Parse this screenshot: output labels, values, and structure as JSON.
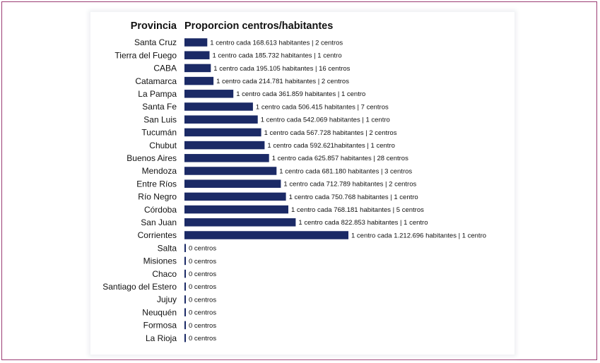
{
  "chart_data": {
    "type": "bar",
    "orientation": "horizontal",
    "header_category": "Provincia",
    "header_value": "Proporcion centros/habitantes",
    "color": "#1b2a66",
    "rows": [
      {
        "category": "Santa Cruz",
        "value": 168613,
        "label": "1 centro cada 168.613 habitantes | 2 centros"
      },
      {
        "category": "Tierra del Fuego",
        "value": 185732,
        "label": "1 centro cada 185.732 habitantes | 1 centro"
      },
      {
        "category": "CABA",
        "value": 195105,
        "label": "1 centro cada 195.105 habitantes | 16 centros"
      },
      {
        "category": "Catamarca",
        "value": 214781,
        "label": "1 centro cada 214.781 habitantes | 2 centros"
      },
      {
        "category": "La Pampa",
        "value": 361859,
        "label": "1 centro cada 361.859 habitantes | 1 centro"
      },
      {
        "category": "Santa Fe",
        "value": 506415,
        "label": "1 centro cada 506.415 habitantes | 7 centros"
      },
      {
        "category": "San Luis",
        "value": 542069,
        "label": "1 centro cada 542.069 habitantes | 1 centro"
      },
      {
        "category": "Tucumán",
        "value": 567728,
        "label": "1 centro cada 567.728 habitantes | 2 centros"
      },
      {
        "category": "Chubut",
        "value": 592621,
        "label": "1 centro cada 592.621habitantes | 1 centro"
      },
      {
        "category": "Buenos Aires",
        "value": 625857,
        "label": "1 centro cada 625.857 habitantes | 28 centros"
      },
      {
        "category": "Mendoza",
        "value": 681180,
        "label": "1 centro cada 681.180 habitantes | 3 centros"
      },
      {
        "category": "Entre Ríos",
        "value": 712789,
        "label": "1 centro cada 712.789 habitantes | 2 centros"
      },
      {
        "category": "Río Negro",
        "value": 750768,
        "label": "1 centro cada 750.768 habitantes | 1 centro"
      },
      {
        "category": "Córdoba",
        "value": 768181,
        "label": "1 centro cada 768.181 habitantes | 5 centros"
      },
      {
        "category": "San Juan",
        "value": 822853,
        "label": "1 centro cada 822.853 habitantes | 1 centro"
      },
      {
        "category": "Corrientes",
        "value": 1212696,
        "label": "1 centro cada 1.212.696 habitantes | 1 centro"
      },
      {
        "category": "Salta",
        "value": 0,
        "label": "0 centros"
      },
      {
        "category": "Misiones",
        "value": 0,
        "label": "0 centros"
      },
      {
        "category": "Chaco",
        "value": 0,
        "label": "0 centros"
      },
      {
        "category": "Santiago del Estero",
        "value": 0,
        "label": "0 centros"
      },
      {
        "category": "Jujuy",
        "value": 0,
        "label": "0 centros"
      },
      {
        "category": "Neuquén",
        "value": 0,
        "label": "0 centros"
      },
      {
        "category": "Formosa",
        "value": 0,
        "label": "0 centros"
      },
      {
        "category": "La Rioja",
        "value": 0,
        "label": "0 centros"
      }
    ]
  }
}
